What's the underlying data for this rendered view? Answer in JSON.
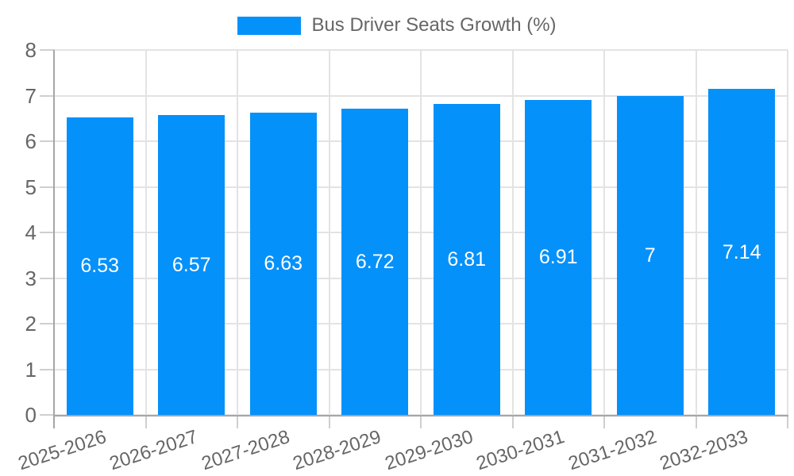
{
  "chart_data": {
    "type": "bar",
    "title": "Bus Driver Seats Growth (%)",
    "legend": {
      "position": "top",
      "label": "Bus Driver Seats Growth (%)"
    },
    "categories": [
      "2025-2026",
      "2026-2027",
      "2027-2028",
      "2028-2029",
      "2029-2030",
      "2030-2031",
      "2031-2032",
      "2032-2033"
    ],
    "values": [
      6.53,
      6.57,
      6.63,
      6.72,
      6.81,
      6.91,
      7,
      7.14
    ],
    "value_labels": [
      "6.53",
      "6.57",
      "6.63",
      "6.72",
      "6.81",
      "6.91",
      "7",
      "7.14"
    ],
    "xlabel": "",
    "ylabel": "",
    "ylim": [
      0,
      8
    ],
    "y_ticks": [
      "0",
      "1",
      "2",
      "3",
      "4",
      "5",
      "6",
      "7",
      "8"
    ],
    "grid": true
  },
  "colors": {
    "background": "#FFFFFF",
    "bar": "#0591FA",
    "bar_label": "#FFFFFF",
    "grid": "#E3E3E3",
    "tick": "#CFCFCF",
    "axis": "#A6A6A6",
    "text": "#666666"
  }
}
